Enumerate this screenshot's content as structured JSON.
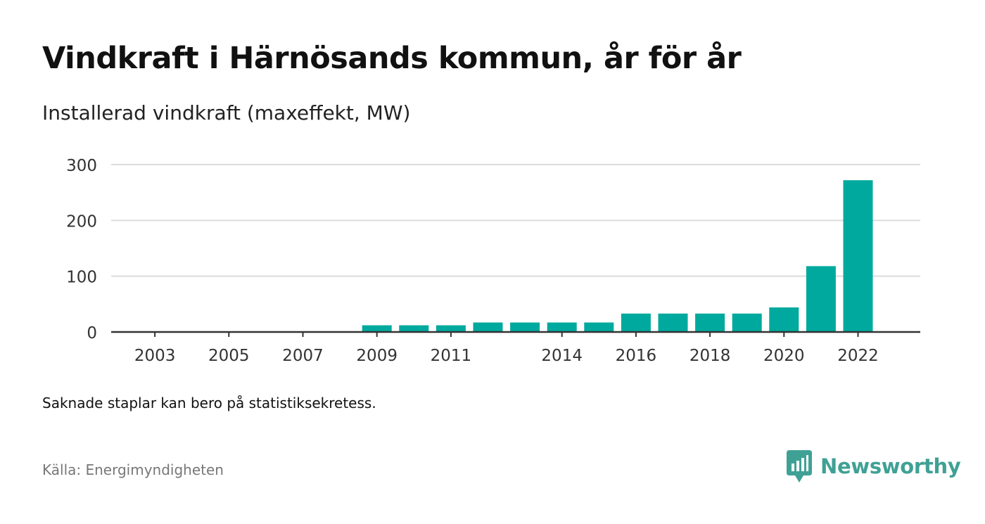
{
  "header": {
    "title": "Vindkraft i Härnösands kommun, år för år",
    "subtitle": "Installerad vindkraft (maxeffekt, MW)"
  },
  "footer": {
    "note": "Saknade staplar kan bero på statistiksekretess.",
    "source": "Källa: Energimyndigheten",
    "brand": "Newsworthy",
    "brand_icon": "newsworthy-logo-icon",
    "brand_color": "#3fa195"
  },
  "chart_data": {
    "type": "bar",
    "title": "Vindkraft i Härnösands kommun, år för år",
    "subtitle": "Installerad vindkraft (maxeffekt, MW)",
    "xlabel": "",
    "ylabel": "",
    "categories": [
      "2002",
      "2003",
      "2004",
      "2005",
      "2006",
      "2007",
      "2008",
      "2009",
      "2010",
      "2011",
      "2012",
      "2013",
      "2014",
      "2015",
      "2016",
      "2017",
      "2018",
      "2019",
      "2020",
      "2021",
      "2022"
    ],
    "values": [
      0,
      0,
      0,
      0,
      0,
      0,
      0,
      12,
      12,
      12,
      17,
      17,
      17,
      17,
      33,
      33,
      33,
      33,
      44,
      118,
      272
    ],
    "x_tick_labels": [
      "2003",
      "2005",
      "2007",
      "2009",
      "2011",
      "2014",
      "2016",
      "2018",
      "2020",
      "2022"
    ],
    "y_ticks": [
      0,
      100,
      200,
      300
    ],
    "ylim": [
      0,
      300
    ],
    "grid": true,
    "legend": "none",
    "bar_color": "#00a99d"
  }
}
